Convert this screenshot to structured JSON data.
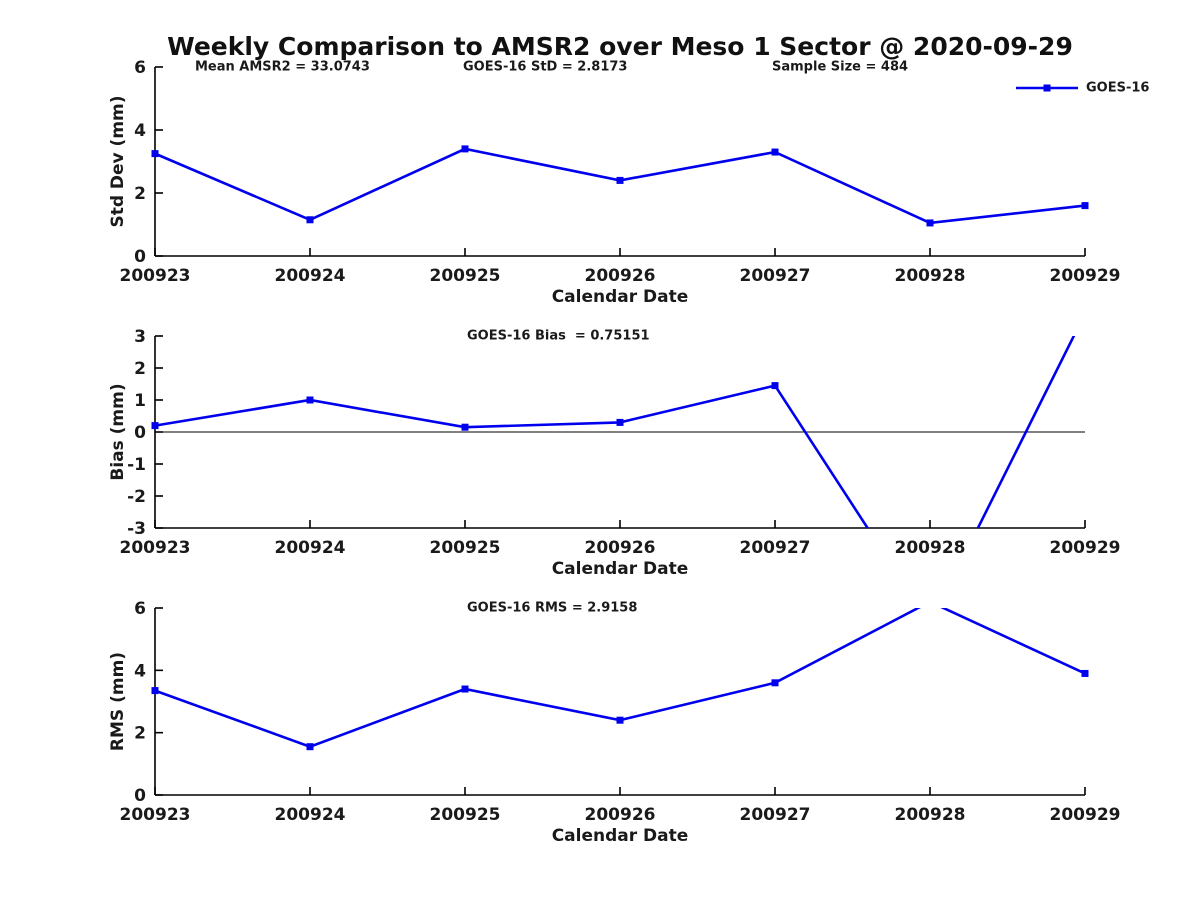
{
  "title": "Weekly Comparison to AMSR2 over Meso 1 Sector @ 2020-09-29",
  "colors": {
    "series": "#0000ee",
    "axis": "#000000",
    "text": "#1a1a1a"
  },
  "chart_data": [
    {
      "type": "line",
      "id": "stddev",
      "series_name": "GOES-16",
      "xlabel": "Calendar Date",
      "ylabel": "Std Dev (mm)",
      "categories": [
        "200923",
        "200924",
        "200925",
        "200926",
        "200927",
        "200928",
        "200929"
      ],
      "values": [
        3.25,
        1.15,
        3.4,
        2.4,
        3.3,
        1.05,
        1.6
      ],
      "ylim": [
        0,
        6
      ],
      "yticks": [
        0,
        2,
        4,
        6
      ],
      "annotations": [
        "Mean AMSR2 = 33.0743",
        "GOES-16 StD = 2.8173",
        "Sample Size = 484"
      ],
      "legend": {
        "label": "GOES-16",
        "position": "top-right"
      },
      "marker": "square",
      "grid": false
    },
    {
      "type": "line",
      "id": "bias",
      "series_name": "GOES-16",
      "xlabel": "Calendar Date",
      "ylabel": "Bias (mm)",
      "categories": [
        "200923",
        "200924",
        "200925",
        "200926",
        "200927",
        "200928",
        "200929"
      ],
      "values": [
        0.2,
        1.0,
        0.15,
        0.3,
        1.45,
        -6.0,
        3.7
      ],
      "ylim": [
        -3,
        3
      ],
      "yticks": [
        -3,
        -2,
        -1,
        0,
        1,
        2,
        3
      ],
      "annotations": [
        "GOES-16 Bias  = 0.75151"
      ],
      "zero_line": true,
      "marker": "square",
      "grid": false
    },
    {
      "type": "line",
      "id": "rms",
      "series_name": "GOES-16",
      "xlabel": "Calendar Date",
      "ylabel": "RMS (mm)",
      "categories": [
        "200923",
        "200924",
        "200925",
        "200926",
        "200927",
        "200928",
        "200929"
      ],
      "values": [
        3.35,
        1.55,
        3.4,
        2.4,
        3.6,
        6.2,
        3.9
      ],
      "ylim": [
        0,
        6
      ],
      "yticks": [
        0,
        2,
        4,
        6
      ],
      "annotations": [
        "GOES-16 RMS = 2.9158"
      ],
      "marker": "square",
      "grid": false
    }
  ]
}
